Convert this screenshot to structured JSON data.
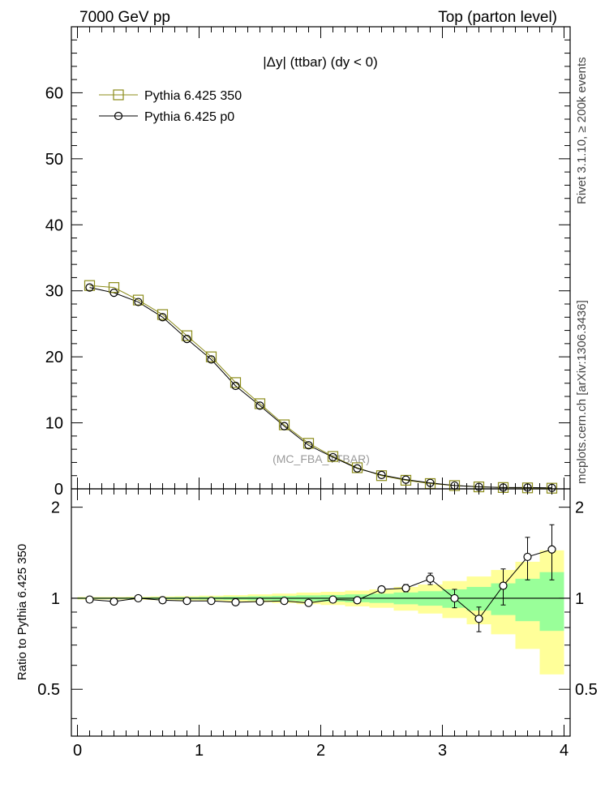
{
  "header": {
    "left": "7000 GeV pp",
    "right": "Top (parton level)"
  },
  "side_texts": {
    "rivet": "Rivet 3.1.10, ≥ 200k events",
    "mcplots": "mcplots.cern.ch [arXiv:1306.3436]"
  },
  "chart_data": [
    {
      "type": "line",
      "title": "|Δy| (ttbar) (dy < 0)",
      "watermark": "(MC_FBA_TTBAR)",
      "xlabel": "",
      "ylabel": "",
      "xlim": [
        -0.05,
        4.05
      ],
      "ylim": [
        0,
        70
      ],
      "yticks": [
        0,
        10,
        20,
        30,
        40,
        50,
        60
      ],
      "ytick_labels": [
        "0",
        "10",
        "20",
        "30",
        "40",
        "50",
        "60"
      ],
      "legend_position": "top-left",
      "x": [
        0.1,
        0.3,
        0.5,
        0.7,
        0.9,
        1.1,
        1.3,
        1.5,
        1.7,
        1.9,
        2.1,
        2.3,
        2.5,
        2.7,
        2.9,
        3.1,
        3.3,
        3.5,
        3.7,
        3.9
      ],
      "series": [
        {
          "name": "Pythia 6.425 350",
          "color": "#8c8c1a",
          "marker": "square",
          "values": [
            30.8,
            30.5,
            28.6,
            26.4,
            23.2,
            20.0,
            16.1,
            12.9,
            9.7,
            6.9,
            4.9,
            3.2,
            2.0,
            1.3,
            0.8,
            0.5,
            0.3,
            0.2,
            0.15,
            0.1
          ]
        },
        {
          "name": "Pythia 6.425 p0",
          "color": "#000000",
          "marker": "circle",
          "values": [
            30.5,
            29.7,
            28.3,
            26.0,
            22.7,
            19.6,
            15.6,
            12.6,
            9.5,
            6.6,
            4.8,
            3.1,
            2.1,
            1.4,
            0.9,
            0.5,
            0.3,
            0.2,
            0.2,
            0.15
          ]
        }
      ]
    },
    {
      "type": "line",
      "title": "",
      "ylabel": "Ratio to Pythia 6.425 350",
      "xlabel": "",
      "xlim": [
        -0.05,
        4.05
      ],
      "ylim": [
        0.35,
        2.3
      ],
      "xticks": [
        0,
        1,
        2,
        3,
        4
      ],
      "xtick_labels": [
        "0",
        "1",
        "2",
        "3",
        "4"
      ],
      "yticks": [
        0.5,
        1,
        2
      ],
      "ytick_labels": [
        "0.5",
        "1",
        "2"
      ],
      "x": [
        0.1,
        0.3,
        0.5,
        0.7,
        0.9,
        1.1,
        1.3,
        1.5,
        1.7,
        1.9,
        2.1,
        2.3,
        2.5,
        2.7,
        2.9,
        3.1,
        3.3,
        3.5,
        3.7,
        3.9
      ],
      "band_inner": [
        0.005,
        0.005,
        0.006,
        0.007,
        0.008,
        0.01,
        0.012,
        0.015,
        0.018,
        0.022,
        0.025,
        0.03,
        0.035,
        0.045,
        0.055,
        0.07,
        0.09,
        0.12,
        0.16,
        0.22
      ],
      "band_outer": [
        0.01,
        0.01,
        0.012,
        0.014,
        0.016,
        0.02,
        0.024,
        0.03,
        0.036,
        0.044,
        0.05,
        0.06,
        0.07,
        0.09,
        0.11,
        0.14,
        0.18,
        0.24,
        0.32,
        0.44
      ],
      "series": [
        {
          "name": "Pythia 6.425 p0 / Pythia 6.425 350",
          "color": "#000000",
          "marker": "circle",
          "values": [
            0.99,
            0.975,
            1.0,
            0.985,
            0.98,
            0.98,
            0.97,
            0.975,
            0.98,
            0.965,
            0.99,
            0.985,
            1.07,
            1.08,
            1.16,
            1.0,
            0.855,
            1.1,
            1.37,
            1.45
          ],
          "errors": [
            0.005,
            0.005,
            0.005,
            0.006,
            0.006,
            0.007,
            0.008,
            0.009,
            0.01,
            0.012,
            0.015,
            0.02,
            0.025,
            0.03,
            0.05,
            0.07,
            0.08,
            0.15,
            0.22,
            0.3
          ]
        }
      ]
    }
  ]
}
